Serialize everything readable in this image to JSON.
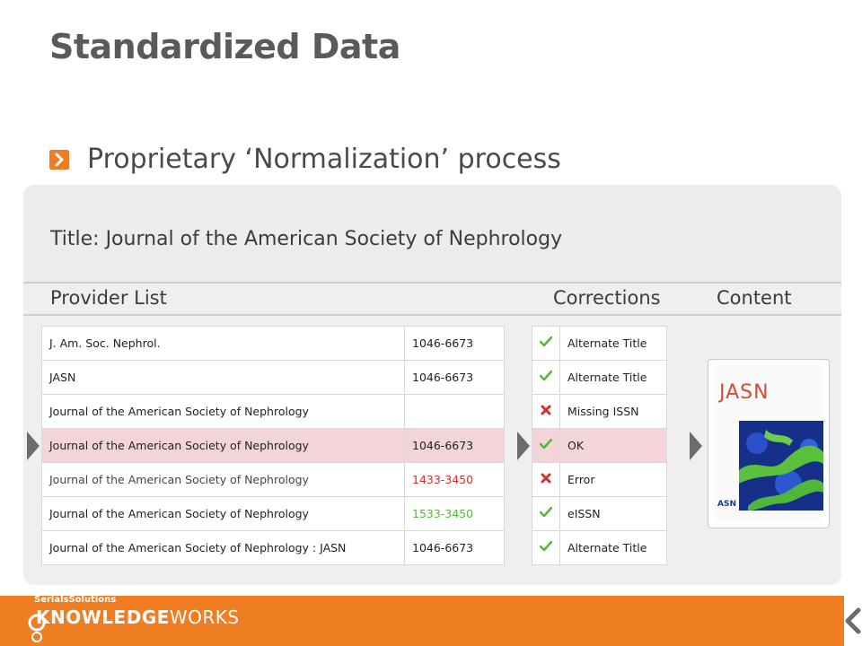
{
  "slide": {
    "title": "Standardized Data",
    "bullet": "Proprietary ‘Normalization’ process"
  },
  "panel": {
    "title_label": "Title:",
    "title_value": "Journal of the American Society of Nephrology",
    "headers": {
      "provider": "Provider List",
      "corrections": "Corrections",
      "content": "Content"
    }
  },
  "provider_rows": [
    {
      "title": "J. Am. Soc. Nephrol.",
      "issn": "1046-6673"
    },
    {
      "title": "JASN",
      "issn": "1046-6673"
    },
    {
      "title": "Journal of the American Society of Nephrology",
      "issn": ""
    },
    {
      "title": "Journal of the American Society of Nephrology",
      "issn": "1046-6673"
    },
    {
      "title": "Journal of the American Society of Nephrology",
      "issn": "1433-3450"
    },
    {
      "title": "Journal of the American Society of Nephrology",
      "issn": "1533-3450"
    },
    {
      "title": "Journal of the American Society of Nephrology : JASN",
      "issn": "1046-6673"
    }
  ],
  "correction_rows": [
    {
      "icon": "check-icon",
      "label": "Alternate Title"
    },
    {
      "icon": "check-icon",
      "label": "Alternate Title"
    },
    {
      "icon": "cross-icon",
      "label": "Missing ISSN"
    },
    {
      "icon": "check-icon",
      "label": "OK"
    },
    {
      "icon": "cross-icon",
      "label": "Error"
    },
    {
      "icon": "check-icon",
      "label": "eISSN"
    },
    {
      "icon": "check-icon",
      "label": "Alternate Title"
    }
  ],
  "cover": {
    "journal": "JASN",
    "publisher": "ASN"
  },
  "footer": {
    "brand_small": "SerialsSolutions",
    "brand_bold": "KNOWLEDGE",
    "brand_light": "WORKS"
  },
  "colors": {
    "accent_orange": "#ef7d22",
    "highlight_row": "#f3d4d9",
    "check_green": "#58b83b",
    "cross_red": "#d0312d",
    "error_text": "#d0312d",
    "eissn_text": "#58b83b"
  }
}
